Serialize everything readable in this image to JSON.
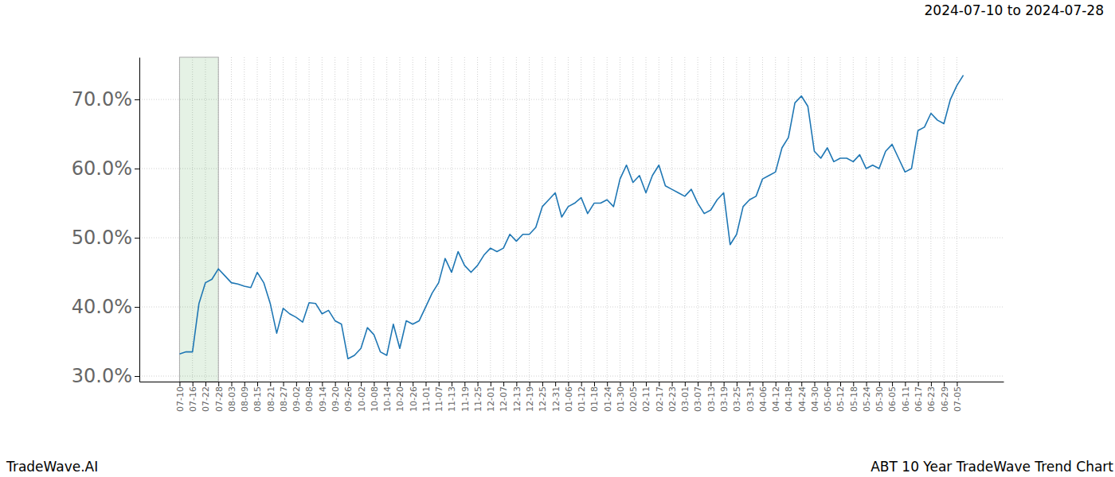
{
  "chart_data": {
    "type": "line",
    "title": "2024-07-10 to 2024-07-28",
    "subtitle": "ABT 10 Year TradeWave Trend Chart",
    "source": "TradeWave.AI",
    "categories": [
      "07-10",
      null,
      "07-16",
      null,
      "07-22",
      null,
      "07-28",
      null,
      "08-03",
      null,
      "08-09",
      null,
      "08-15",
      null,
      "08-21",
      null,
      "08-27",
      null,
      "09-02",
      null,
      "09-08",
      null,
      "09-14",
      null,
      "09-20",
      null,
      "09-26",
      null,
      "10-02",
      null,
      "10-08",
      null,
      "10-14",
      null,
      "10-20",
      null,
      "10-26",
      null,
      "11-01",
      null,
      "11-07",
      null,
      "11-13",
      null,
      "11-19",
      null,
      "11-25",
      null,
      "12-01",
      null,
      "12-07",
      null,
      "12-13",
      null,
      "12-19",
      null,
      "12-25",
      null,
      "12-31",
      null,
      "01-06",
      null,
      "01-12",
      null,
      "01-18",
      null,
      "01-24",
      null,
      "01-30",
      null,
      "02-05",
      null,
      "02-11",
      null,
      "02-17",
      null,
      "02-23",
      null,
      "03-01",
      null,
      "03-07",
      null,
      "03-13",
      null,
      "03-19",
      null,
      "03-25",
      null,
      "03-31",
      null,
      "04-06",
      null,
      "04-12",
      null,
      "04-18",
      null,
      "04-24",
      null,
      "04-30",
      null,
      "05-06",
      null,
      "05-12",
      null,
      "05-18",
      null,
      "05-24",
      null,
      "05-30",
      null,
      "06-05",
      null,
      "06-11",
      null,
      "06-17",
      null,
      "06-23",
      null,
      "06-29",
      null,
      "07-05",
      null
    ],
    "values": [
      33.2,
      33.5,
      33.5,
      40.5,
      43.5,
      44.0,
      45.5,
      44.5,
      43.5,
      43.3,
      43.0,
      42.8,
      45.0,
      43.5,
      40.5,
      36.2,
      39.8,
      39.0,
      38.5,
      37.8,
      40.6,
      40.5,
      39.0,
      39.5,
      38.0,
      37.5,
      32.5,
      33.0,
      34.0,
      37.0,
      36.0,
      33.5,
      33.0,
      37.5,
      34.0,
      38.0,
      37.5,
      38.0,
      40.0,
      42.0,
      43.5,
      47.0,
      45.0,
      48.0,
      46.0,
      45.0,
      46.0,
      47.5,
      48.5,
      48.0,
      48.5,
      50.5,
      49.5,
      50.5,
      50.5,
      51.5,
      54.5,
      55.5,
      56.5,
      53.0,
      54.5,
      55.0,
      55.8,
      53.5,
      55.0,
      55.0,
      55.5,
      54.5,
      58.5,
      60.5,
      58.0,
      59.0,
      56.5,
      59.0,
      60.5,
      57.5,
      57.0,
      56.5,
      56.0,
      57.0,
      55.0,
      53.5,
      54.0,
      55.5,
      56.5,
      49.0,
      50.5,
      54.5,
      55.5,
      56.0,
      58.5,
      59.0,
      59.5,
      63.0,
      64.5,
      69.5,
      70.5,
      69.0,
      62.5,
      61.5,
      63.0,
      61.0,
      61.5,
      61.5,
      61.0,
      62.0,
      60.0,
      60.5,
      60.0,
      62.5,
      63.5,
      61.5,
      59.5,
      60.0,
      65.5,
      66.0,
      68.0,
      67.0,
      66.5,
      70.0,
      72.0,
      73.5
    ],
    "color": "#1f77b4",
    "ylim": [
      29.2,
      76.1
    ],
    "yticks": [
      {
        "value": 30,
        "label": "30.0%"
      },
      {
        "value": 40,
        "label": "40.0%"
      },
      {
        "value": 50,
        "label": "50.0%"
      },
      {
        "value": 60,
        "label": "60.0%"
      },
      {
        "value": 70,
        "label": "70.0%"
      }
    ],
    "grid": true,
    "shaded_range": [
      "07-10",
      "07-28"
    ]
  }
}
